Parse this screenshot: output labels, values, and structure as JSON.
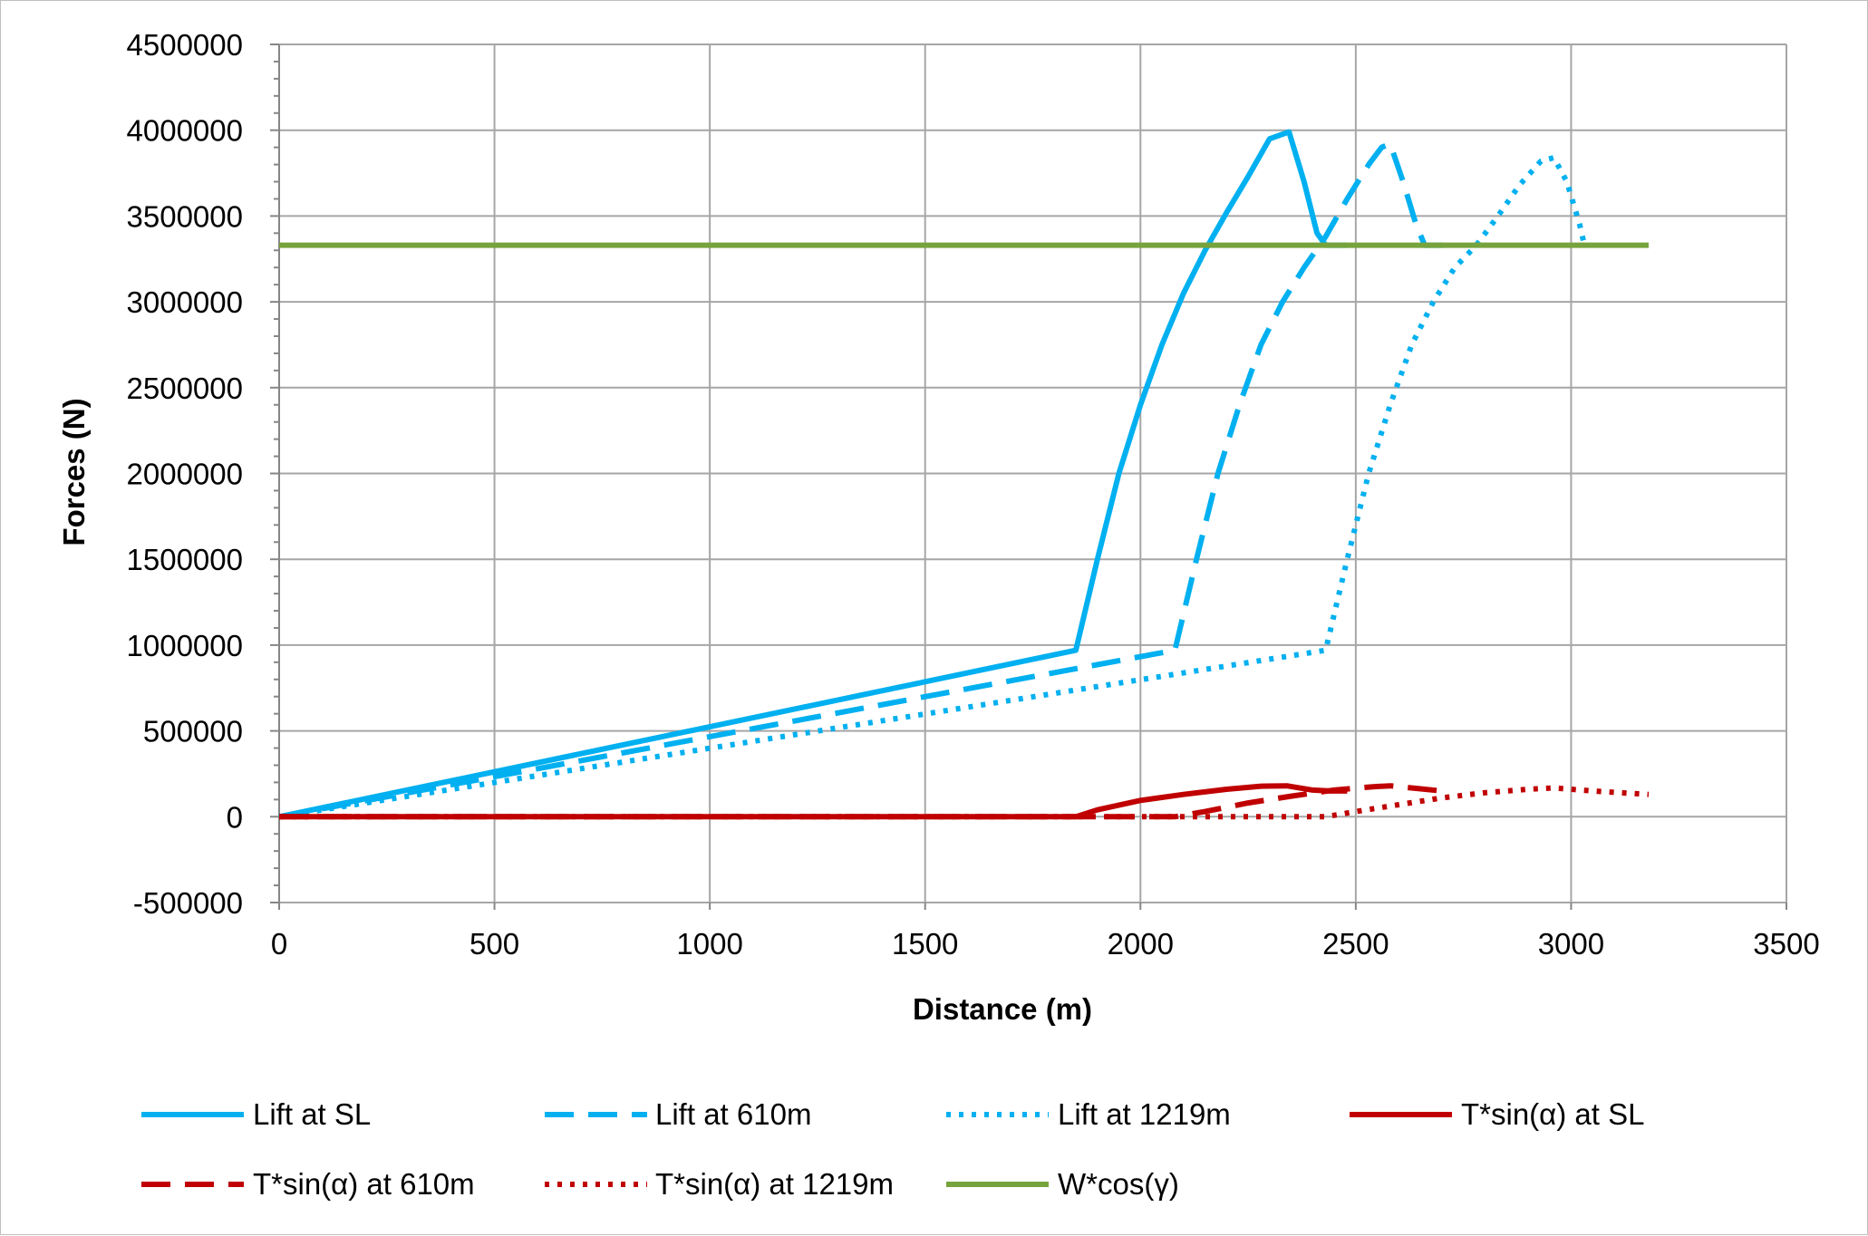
{
  "chart_data": {
    "type": "line",
    "title": "",
    "xlabel": "Distance (m)",
    "ylabel": "Forces (N)",
    "xlim": [
      0,
      3500
    ],
    "ylim": [
      -500000,
      4500000
    ],
    "x_ticks": [
      0,
      500,
      1000,
      1500,
      2000,
      2500,
      3000,
      3500
    ],
    "y_ticks": [
      -500000,
      0,
      500000,
      1000000,
      1500000,
      2000000,
      2500000,
      3000000,
      3500000,
      4000000,
      4500000
    ],
    "x_tick_labels": [
      "0",
      "500",
      "1000",
      "1500",
      "2000",
      "2500",
      "3000",
      "3500"
    ],
    "y_tick_labels": [
      "-500000",
      "0",
      "500000",
      "1000000",
      "1500000",
      "2000000",
      "2500000",
      "3000000",
      "3500000",
      "4000000",
      "4500000"
    ],
    "grid": true,
    "legend_position": "bottom",
    "series": [
      {
        "name": "Lift at SL",
        "color": "#00b0f0",
        "dash": "solid",
        "points": [
          [
            0,
            0
          ],
          [
            1850,
            970000
          ],
          [
            1900,
            1500000
          ],
          [
            1950,
            2000000
          ],
          [
            2000,
            2400000
          ],
          [
            2050,
            2750000
          ],
          [
            2100,
            3050000
          ],
          [
            2150,
            3300000
          ],
          [
            2200,
            3520000
          ],
          [
            2250,
            3730000
          ],
          [
            2300,
            3950000
          ],
          [
            2345,
            3990000
          ],
          [
            2380,
            3700000
          ],
          [
            2410,
            3400000
          ],
          [
            2430,
            3330000
          ],
          [
            2480,
            3330000
          ]
        ]
      },
      {
        "name": "Lift at 610m",
        "color": "#00b0f0",
        "dash": "dashed",
        "points": [
          [
            0,
            0
          ],
          [
            2080,
            970000
          ],
          [
            2130,
            1500000
          ],
          [
            2180,
            2000000
          ],
          [
            2230,
            2400000
          ],
          [
            2280,
            2750000
          ],
          [
            2330,
            3000000
          ],
          [
            2380,
            3200000
          ],
          [
            2430,
            3380000
          ],
          [
            2480,
            3600000
          ],
          [
            2530,
            3800000
          ],
          [
            2560,
            3900000
          ],
          [
            2580,
            3920000
          ],
          [
            2610,
            3700000
          ],
          [
            2640,
            3450000
          ],
          [
            2660,
            3330000
          ],
          [
            2720,
            3330000
          ]
        ]
      },
      {
        "name": "Lift at 1219m",
        "color": "#00b0f0",
        "dash": "dotted",
        "points": [
          [
            0,
            0
          ],
          [
            2430,
            970000
          ],
          [
            2480,
            1500000
          ],
          [
            2530,
            2000000
          ],
          [
            2580,
            2400000
          ],
          [
            2630,
            2750000
          ],
          [
            2680,
            3000000
          ],
          [
            2730,
            3200000
          ],
          [
            2780,
            3330000
          ],
          [
            2830,
            3500000
          ],
          [
            2880,
            3680000
          ],
          [
            2930,
            3820000
          ],
          [
            2960,
            3840000
          ],
          [
            2990,
            3700000
          ],
          [
            3020,
            3450000
          ],
          [
            3030,
            3340000
          ]
        ]
      },
      {
        "name": "T*sin(α) at SL",
        "color": "#c00000",
        "dash": "solid",
        "points": [
          [
            0,
            0
          ],
          [
            1850,
            0
          ],
          [
            1900,
            40000
          ],
          [
            2000,
            95000
          ],
          [
            2100,
            130000
          ],
          [
            2200,
            160000
          ],
          [
            2280,
            178000
          ],
          [
            2340,
            180000
          ],
          [
            2400,
            155000
          ],
          [
            2440,
            150000
          ],
          [
            2480,
            150000
          ]
        ]
      },
      {
        "name": "T*sin(α) at 610m",
        "color": "#c00000",
        "dash": "dashed",
        "points": [
          [
            0,
            0
          ],
          [
            2080,
            0
          ],
          [
            2150,
            30000
          ],
          [
            2250,
            80000
          ],
          [
            2350,
            120000
          ],
          [
            2450,
            155000
          ],
          [
            2540,
            175000
          ],
          [
            2580,
            180000
          ],
          [
            2640,
            165000
          ],
          [
            2700,
            150000
          ]
        ]
      },
      {
        "name": "T*sin(α) at 1219m",
        "color": "#c00000",
        "dash": "dotted",
        "points": [
          [
            0,
            0
          ],
          [
            2430,
            0
          ],
          [
            2500,
            30000
          ],
          [
            2600,
            70000
          ],
          [
            2700,
            110000
          ],
          [
            2800,
            140000
          ],
          [
            2900,
            160000
          ],
          [
            2960,
            168000
          ],
          [
            3050,
            150000
          ],
          [
            3180,
            130000
          ]
        ]
      },
      {
        "name": "W*cos(γ)",
        "color": "#77a33c",
        "dash": "solid",
        "points": [
          [
            0,
            3330000
          ],
          [
            3180,
            3330000
          ]
        ]
      }
    ]
  }
}
